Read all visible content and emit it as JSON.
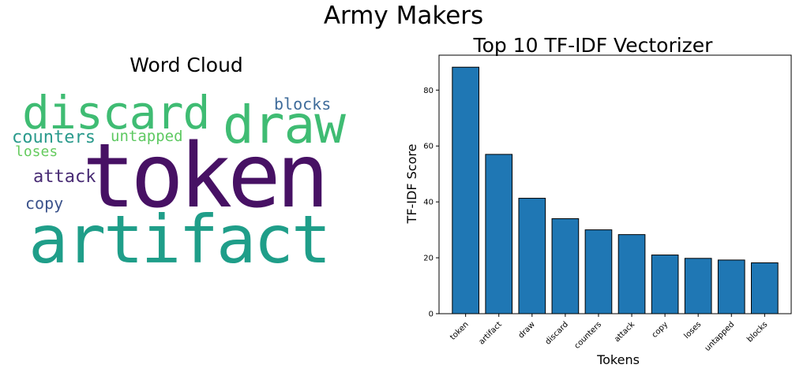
{
  "suptitle": "Army Makers",
  "word_cloud": {
    "title": "Word Cloud",
    "words": [
      {
        "text": "token",
        "color": "#471164"
      },
      {
        "text": "artifact",
        "color": "#1f9e89"
      },
      {
        "text": "draw",
        "color": "#3fbc73"
      },
      {
        "text": "discard",
        "color": "#3fbc73"
      },
      {
        "text": "counters",
        "color": "#2a9a8c"
      },
      {
        "text": "attack",
        "color": "#482b74"
      },
      {
        "text": "copy",
        "color": "#3b528b"
      },
      {
        "text": "loses",
        "color": "#65cb5e"
      },
      {
        "text": "untapped",
        "color": "#5ec962"
      },
      {
        "text": "blocks",
        "color": "#3e6b9a"
      }
    ]
  },
  "chart_data": {
    "type": "bar",
    "title": "Top 10 TF-IDF Vectorizer",
    "xlabel": "Tokens",
    "ylabel": "TF-IDF Score",
    "categories": [
      "token",
      "artifact",
      "draw",
      "discard",
      "counters",
      "attack",
      "copy",
      "loses",
      "untapped",
      "blocks"
    ],
    "values": [
      88.2,
      57.0,
      41.3,
      34.0,
      30.0,
      28.3,
      21.0,
      19.8,
      19.2,
      18.2
    ],
    "ylim": [
      0,
      92.5
    ],
    "yticks": [
      0,
      20,
      40,
      60,
      80
    ],
    "bar_color": "#1f77b4",
    "grid": false
  }
}
